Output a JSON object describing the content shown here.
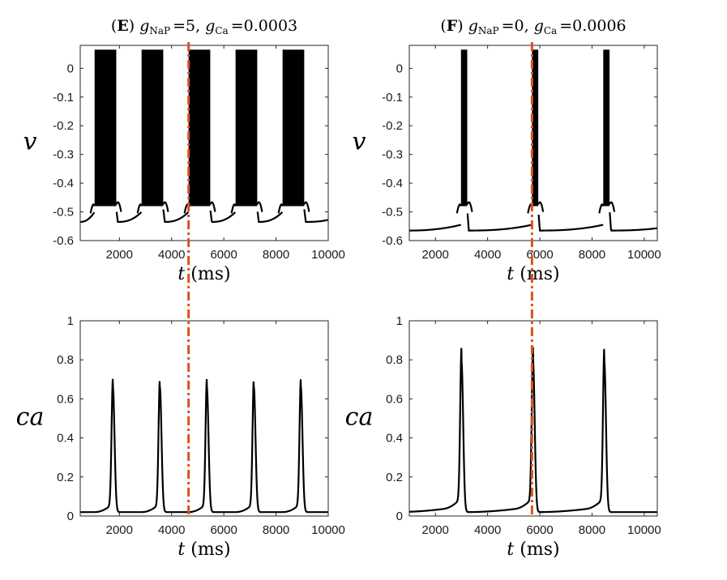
{
  "chart_data": [
    {
      "type": "line",
      "panel": "E-voltage",
      "title_parts": {
        "letter": "E",
        "g1_sub": "NaP",
        "g1_val": "=5,",
        "g2_sub": "Ca",
        "g2_val": "=0.0003"
      },
      "ylabel": "v",
      "xlabel_var": "t",
      "xlabel_unit": "(ms)",
      "xlim": [
        500,
        10000
      ],
      "ylim": [
        -0.6,
        0.08
      ],
      "xticks": [
        2000,
        4000,
        6000,
        8000,
        10000
      ],
      "yticks": [
        0,
        -0.1,
        -0.2,
        -0.3,
        -0.4,
        -0.5,
        -0.6
      ],
      "ytick_labels": [
        "0",
        "-0.1",
        "-0.2",
        "-0.3",
        "-0.4",
        "-0.5",
        "-0.6"
      ],
      "bursts": [
        [
          1050,
          1880
        ],
        [
          2850,
          3680
        ],
        [
          4650,
          5480
        ],
        [
          6450,
          7280
        ],
        [
          8250,
          9080
        ]
      ],
      "spike_peak": 0.065,
      "burst_trough": -0.48,
      "series": [
        {
          "values": "voltage trace with bursting spikes"
        }
      ],
      "marker_x": 4650,
      "marker_color": "#D95319",
      "line_color": "#000000"
    },
    {
      "type": "line",
      "panel": "F-voltage",
      "title_parts": {
        "letter": "F",
        "g1_sub": "NaP",
        "g1_val": "=0,",
        "g2_sub": "Ca",
        "g2_val": "=0.0006"
      },
      "ylabel": "v",
      "xlabel_var": "t",
      "xlabel_unit": "(ms)",
      "xlim": [
        1000,
        10500
      ],
      "ylim": [
        -0.6,
        0.08
      ],
      "xticks": [
        2000,
        4000,
        6000,
        8000,
        10000
      ],
      "yticks": [
        0,
        -0.1,
        -0.2,
        -0.3,
        -0.4,
        -0.5,
        -0.6
      ],
      "ytick_labels": [
        "0",
        "-0.1",
        "-0.2",
        "-0.3",
        "-0.4",
        "-0.5",
        "-0.6"
      ],
      "bursts": [
        [
          2980,
          3220
        ],
        [
          5700,
          5940
        ],
        [
          8430,
          8670
        ]
      ],
      "spike_peak": 0.065,
      "burst_trough": -0.48,
      "marker_x": 5700,
      "marker_color": "#D95319",
      "line_color": "#000000"
    },
    {
      "type": "line",
      "panel": "E-calcium",
      "ylabel": "ca",
      "xlabel_var": "t",
      "xlabel_unit": "(ms)",
      "xlim": [
        500,
        10000
      ],
      "ylim": [
        0,
        1
      ],
      "xticks": [
        2000,
        4000,
        6000,
        8000,
        10000
      ],
      "yticks": [
        0,
        0.2,
        0.4,
        0.6,
        0.8,
        1
      ],
      "ytick_labels": [
        "0",
        "0.2",
        "0.4",
        "0.6",
        "0.8",
        "1"
      ],
      "peaks": [
        1750,
        3550,
        5350,
        7150,
        8950
      ],
      "peak_value": 0.66,
      "baseline": 0.02,
      "marker_x": 4650,
      "marker_color": "#D95319",
      "line_color": "#000000"
    },
    {
      "type": "line",
      "panel": "F-calcium",
      "ylabel": "ca",
      "xlabel_var": "t",
      "xlabel_unit": "(ms)",
      "xlim": [
        1000,
        10500
      ],
      "ylim": [
        0,
        1
      ],
      "xticks": [
        2000,
        4000,
        6000,
        8000,
        10000
      ],
      "yticks": [
        0,
        0.2,
        0.4,
        0.6,
        0.8,
        1
      ],
      "ytick_labels": [
        "0",
        "0.2",
        "0.4",
        "0.6",
        "0.8",
        "1"
      ],
      "peaks": [
        3000,
        5740,
        8470
      ],
      "peak_value": 0.79,
      "baseline": 0.02,
      "marker_x": 5700,
      "marker_color": "#D95319",
      "line_color": "#000000"
    }
  ]
}
